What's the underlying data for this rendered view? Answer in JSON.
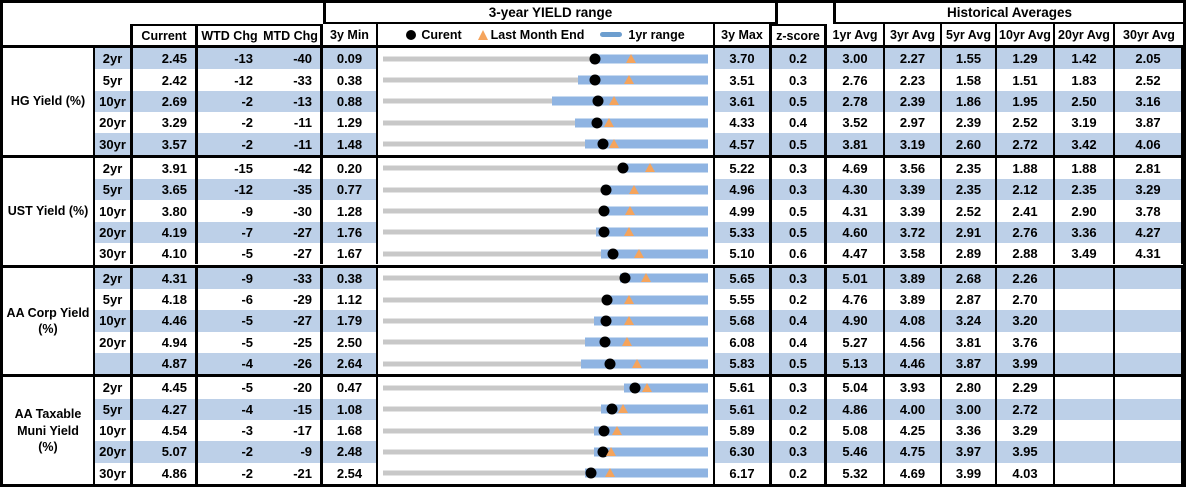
{
  "groups": {
    "range_title": "3-year YIELD range",
    "hist_title": "Historical Averages"
  },
  "columns": {
    "current": "Current",
    "wtd": "WTD Chg",
    "mtd": "MTD Chg",
    "min": "3y Min",
    "max": "3y Max",
    "z": "z-score",
    "avgs": [
      "1yr Avg",
      "3yr Avg",
      "5yr Avg",
      "10yr Avg",
      "20yr Avg",
      "30yr Avg"
    ]
  },
  "legend": {
    "current": "Curent",
    "last_month_end": "Last Month End",
    "range_1yr": "1yr range"
  },
  "colors": {
    "stripe": "#BDD0E8",
    "bar_1yr_range": "#8FB4E2",
    "track_3y_range": "#C8C8C8",
    "triangle_last_month": "#F5A45C",
    "legend_dash": "#6D9ECF",
    "dot_current": "#000000"
  },
  "chart_data": {
    "type": "range-dot-table",
    "title": "3-year YIELD range",
    "legend_entries": [
      "Curent (black dot)",
      "Last Month End (orange triangle)",
      "1yr range (blue bar)"
    ],
    "marks": {
      "dot": "Current value position within 3y Min–3y Max",
      "triangle": "Last month end = Current - MTD Chg/100",
      "blue_bar": "1yr range, from bar_start_frac of 3y range to 3y Max",
      "gray_line": "full 3-year range"
    },
    "sections": [
      {
        "id": "hg-yield",
        "label_lines": [
          "HG Yield (%)"
        ],
        "rows": [
          {
            "tenor": "2yr",
            "current": "2.45",
            "wtd": "-13",
            "mtd": "-40",
            "min": "0.09",
            "max": "3.70",
            "z": "0.2",
            "avgs": [
              "3.00",
              "2.27",
              "1.55",
              "1.29",
              "1.42",
              "2.05"
            ],
            "bar_start_frac": 0.64
          },
          {
            "tenor": "5yr",
            "current": "2.42",
            "wtd": "-12",
            "mtd": "-33",
            "min": "0.38",
            "max": "3.51",
            "z": "0.3",
            "avgs": [
              "2.76",
              "2.23",
              "1.58",
              "1.51",
              "1.83",
              "2.52"
            ],
            "bar_start_frac": 0.6
          },
          {
            "tenor": "10yr",
            "current": "2.69",
            "wtd": "-2",
            "mtd": "-13",
            "min": "0.88",
            "max": "3.61",
            "z": "0.5",
            "avgs": [
              "2.78",
              "2.39",
              "1.86",
              "1.95",
              "2.50",
              "3.16"
            ],
            "bar_start_frac": 0.52
          },
          {
            "tenor": "20yr",
            "current": "3.29",
            "wtd": "-2",
            "mtd": "-11",
            "min": "1.29",
            "max": "4.33",
            "z": "0.4",
            "avgs": [
              "3.52",
              "2.97",
              "2.39",
              "2.52",
              "3.19",
              "3.87"
            ],
            "bar_start_frac": 0.59
          },
          {
            "tenor": "30yr",
            "current": "3.57",
            "wtd": "-2",
            "mtd": "-11",
            "min": "1.48",
            "max": "4.57",
            "z": "0.5",
            "avgs": [
              "3.81",
              "3.19",
              "2.60",
              "2.72",
              "3.42",
              "4.06"
            ],
            "bar_start_frac": 0.62
          }
        ]
      },
      {
        "id": "ust-yield",
        "label_lines": [
          "UST Yield (%)"
        ],
        "rows": [
          {
            "tenor": "2yr",
            "current": "3.91",
            "wtd": "-15",
            "mtd": "-42",
            "min": "0.20",
            "max": "5.22",
            "z": "0.3",
            "avgs": [
              "4.69",
              "3.56",
              "2.35",
              "1.88",
              "1.88",
              "2.81"
            ],
            "bar_start_frac": 0.73
          },
          {
            "tenor": "5yr",
            "current": "3.65",
            "wtd": "-12",
            "mtd": "-35",
            "min": "0.77",
            "max": "4.96",
            "z": "0.3",
            "avgs": [
              "4.30",
              "3.39",
              "2.35",
              "2.12",
              "2.35",
              "3.29"
            ],
            "bar_start_frac": 0.675
          },
          {
            "tenor": "10yr",
            "current": "3.80",
            "wtd": "-9",
            "mtd": "-30",
            "min": "1.28",
            "max": "4.99",
            "z": "0.5",
            "avgs": [
              "4.31",
              "3.39",
              "2.52",
              "2.41",
              "2.90",
              "3.78"
            ],
            "bar_start_frac": 0.67
          },
          {
            "tenor": "20yr",
            "current": "4.19",
            "wtd": "-7",
            "mtd": "-27",
            "min": "1.76",
            "max": "5.33",
            "z": "0.5",
            "avgs": [
              "4.60",
              "3.72",
              "2.91",
              "2.76",
              "3.36",
              "4.27"
            ],
            "bar_start_frac": 0.655
          },
          {
            "tenor": "30yr",
            "current": "4.10",
            "wtd": "-5",
            "mtd": "-27",
            "min": "1.67",
            "max": "5.10",
            "z": "0.6",
            "avgs": [
              "4.47",
              "3.58",
              "2.89",
              "2.88",
              "3.49",
              "4.31"
            ],
            "bar_start_frac": 0.67
          }
        ]
      },
      {
        "id": "aa-corp-yield",
        "label_lines": [
          "AA Corp Yield",
          "(%)"
        ],
        "rows": [
          {
            "tenor": "2yr",
            "current": "4.31",
            "wtd": "-9",
            "mtd": "-33",
            "min": "0.38",
            "max": "5.65",
            "z": "0.3",
            "avgs": [
              "5.01",
              "3.89",
              "2.68",
              "2.26",
              "",
              ""
            ],
            "bar_start_frac": 0.73
          },
          {
            "tenor": "5yr",
            "current": "4.18",
            "wtd": "-6",
            "mtd": "-29",
            "min": "1.12",
            "max": "5.55",
            "z": "0.2",
            "avgs": [
              "4.76",
              "3.89",
              "2.87",
              "2.70",
              "",
              ""
            ],
            "bar_start_frac": 0.68
          },
          {
            "tenor": "10yr",
            "current": "4.46",
            "wtd": "-5",
            "mtd": "-27",
            "min": "1.79",
            "max": "5.68",
            "z": "0.4",
            "avgs": [
              "4.90",
              "4.08",
              "3.24",
              "3.20",
              "",
              ""
            ],
            "bar_start_frac": 0.65
          },
          {
            "tenor": "20yr",
            "current": "4.94",
            "wtd": "-5",
            "mtd": "-25",
            "min": "2.50",
            "max": "6.08",
            "z": "0.4",
            "avgs": [
              "5.27",
              "4.56",
              "3.81",
              "3.76",
              "",
              ""
            ],
            "bar_start_frac": 0.62
          },
          {
            "tenor": "",
            "current": "4.87",
            "wtd": "-4",
            "mtd": "-26",
            "min": "2.64",
            "max": "5.83",
            "z": "0.5",
            "avgs": [
              "5.13",
              "4.46",
              "3.87",
              "3.99",
              "",
              ""
            ],
            "bar_start_frac": 0.61
          }
        ]
      },
      {
        "id": "aa-taxable-muni-yield",
        "label_lines": [
          "AA Taxable",
          "Muni Yield",
          "(%)"
        ],
        "rows": [
          {
            "tenor": "2yr",
            "current": "4.45",
            "wtd": "-5",
            "mtd": "-20",
            "min": "0.47",
            "max": "5.61",
            "z": "0.3",
            "avgs": [
              "5.04",
              "3.93",
              "2.80",
              "2.29",
              "",
              ""
            ],
            "bar_start_frac": 0.74
          },
          {
            "tenor": "5yr",
            "current": "4.27",
            "wtd": "-4",
            "mtd": "-15",
            "min": "1.08",
            "max": "5.61",
            "z": "0.2",
            "avgs": [
              "4.86",
              "4.00",
              "3.00",
              "2.72",
              "",
              ""
            ],
            "bar_start_frac": 0.67
          },
          {
            "tenor": "10yr",
            "current": "4.54",
            "wtd": "-3",
            "mtd": "-17",
            "min": "1.68",
            "max": "5.89",
            "z": "0.2",
            "avgs": [
              "5.08",
              "4.25",
              "3.36",
              "3.29",
              "",
              ""
            ],
            "bar_start_frac": 0.65
          },
          {
            "tenor": "20yr",
            "current": "5.07",
            "wtd": "-2",
            "mtd": "-9",
            "min": "2.48",
            "max": "6.30",
            "z": "0.3",
            "avgs": [
              "5.46",
              "4.75",
              "3.97",
              "3.95",
              "",
              ""
            ],
            "bar_start_frac": 0.65
          },
          {
            "tenor": "30yr",
            "current": "4.86",
            "wtd": "-2",
            "mtd": "-21",
            "min": "2.54",
            "max": "6.17",
            "z": "0.2",
            "avgs": [
              "5.32",
              "4.69",
              "3.99",
              "4.03",
              "",
              ""
            ],
            "bar_start_frac": 0.62
          }
        ]
      }
    ]
  }
}
